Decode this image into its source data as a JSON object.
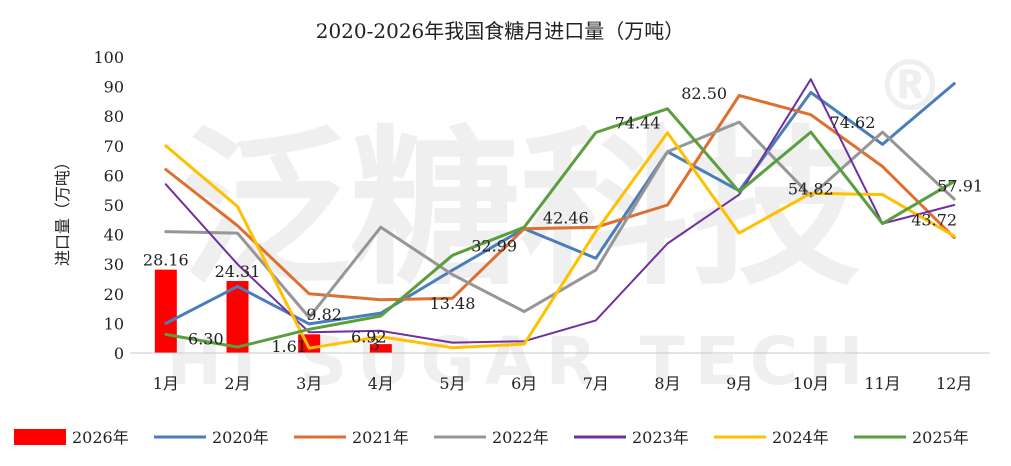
{
  "watermark": {
    "cn": "泛糖科技",
    "en": "HI SUGAR TECH",
    "mark": "®"
  },
  "chart_data": {
    "type": "bar+line",
    "title": "2020-2026年我国食糖月进口量（万吨）",
    "ylabel": "进口量（万吨）",
    "xlabel": "",
    "ylim": [
      0,
      100
    ],
    "yticks": [
      0,
      10,
      20,
      30,
      40,
      50,
      60,
      70,
      80,
      90,
      100
    ],
    "grid": false,
    "legend_position": "bottom",
    "categories": [
      "1月",
      "2月",
      "3月",
      "4月",
      "5月",
      "6月",
      "7月",
      "8月",
      "9月",
      "10月",
      "11月",
      "12月"
    ],
    "bars": [
      {
        "name": "2026年",
        "color": "#ff0000",
        "values": [
          28.16,
          24.31,
          6.3,
          3.0
        ]
      }
    ],
    "series": [
      {
        "name": "2020年",
        "color": "#4a7ebb",
        "values": [
          10,
          22.5,
          9.82,
          13.48,
          28,
          42,
          32,
          68,
          54.82,
          88,
          70.5,
          91
        ]
      },
      {
        "name": "2021年",
        "color": "#dd7031",
        "values": [
          62,
          43,
          20,
          18,
          18.5,
          42,
          42.46,
          50,
          87,
          80.5,
          63,
          39
        ]
      },
      {
        "name": "2022年",
        "color": "#969696",
        "values": [
          41,
          40.5,
          12,
          42.5,
          26.5,
          14,
          28,
          68,
          78,
          53,
          74.62,
          52
        ]
      },
      {
        "name": "2023年",
        "color": "#7030a0",
        "values": [
          57,
          30,
          7,
          7.5,
          3.5,
          4,
          11,
          37,
          53.5,
          92.5,
          43.72,
          50
        ]
      },
      {
        "name": "2024年",
        "color": "#ffc000",
        "values": [
          70,
          49.5,
          1.61,
          5.5,
          1.8,
          3,
          41,
          74.44,
          40.5,
          54,
          53.5,
          39.5
        ]
      },
      {
        "name": "2025年",
        "color": "#5a9e3e",
        "values": [
          6.3,
          2,
          8,
          12.5,
          32.99,
          42.5,
          74.5,
          82.5,
          54.5,
          74.62,
          43.72,
          57.91
        ]
      }
    ],
    "data_labels": [
      "28.16",
      "24.31",
      "9.82",
      "6.30",
      "1.61",
      "6.92",
      "3",
      "13.48",
      "32.99",
      "42.46",
      "74.44",
      "82.50",
      "54.82",
      "74.62",
      "43.72",
      "57.91"
    ]
  }
}
